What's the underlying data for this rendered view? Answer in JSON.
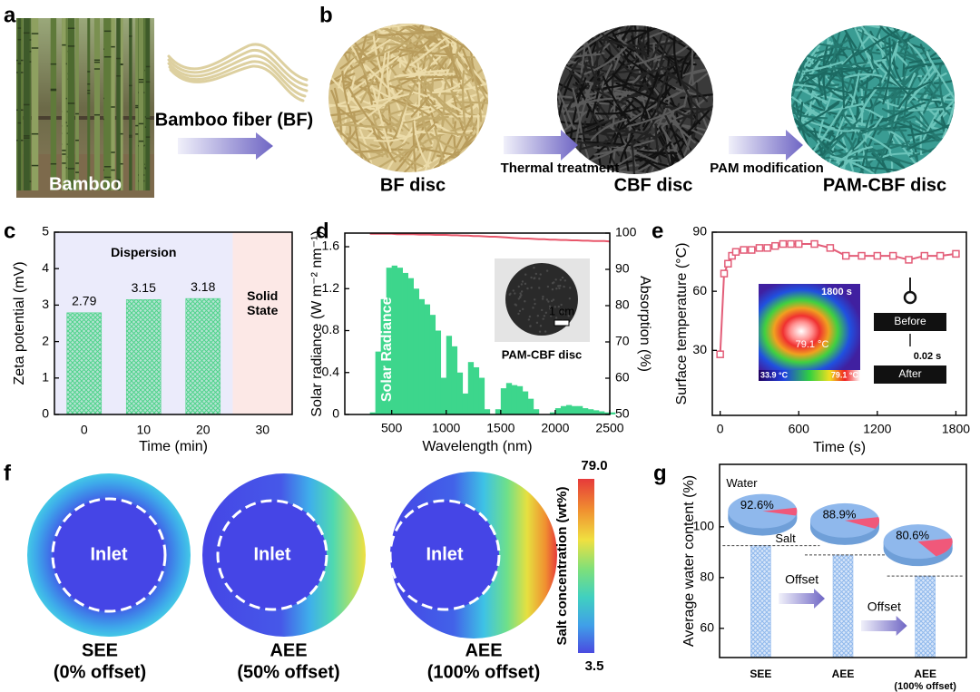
{
  "panels": {
    "a": {
      "label": "a",
      "photo": "Bamboo",
      "fiber": "Bamboo fiber (BF)"
    },
    "b": {
      "label": "b",
      "discs": [
        "BF disc",
        "CBF disc",
        "PAM-CBF disc"
      ],
      "steps": [
        "Thermal treatment",
        "PAM modification"
      ]
    },
    "f": {
      "label": "f",
      "inlets": [
        "Inlet",
        "Inlet",
        "Inlet"
      ],
      "cases": [
        {
          "name": "SEE",
          "offset": "(0% offset)"
        },
        {
          "name": "AEE",
          "offset": "(50% offset)"
        },
        {
          "name": "AEE",
          "offset": "(100% offset)"
        }
      ],
      "colorbar": {
        "label": "Salt concentration (wt%)",
        "max": "79.0",
        "min": "3.5"
      }
    }
  },
  "chart_data": [
    {
      "type": "bar",
      "label": "c",
      "categories": [
        "0",
        "10",
        "20",
        "30"
      ],
      "values": [
        2.79,
        3.15,
        3.18,
        null
      ],
      "color": "#4fd38a",
      "ylim": [
        0,
        5
      ],
      "yticks": [
        0,
        1,
        2,
        3,
        4,
        5
      ],
      "xlabel": "Time (min)",
      "ylabel": "Zeta potential (mV)",
      "regions": [
        {
          "label": "Dispersion",
          "color": "#ebebfb",
          "categories": [
            "0",
            "20"
          ]
        },
        {
          "label": "Solid State",
          "color": "#fce8e6",
          "categories": [
            "30",
            "30"
          ]
        }
      ]
    },
    {
      "type": "line",
      "label": "d",
      "x": [
        300,
        350,
        400,
        450,
        500,
        550,
        600,
        650,
        700,
        750,
        800,
        850,
        900,
        950,
        1000,
        1050,
        1100,
        1150,
        1200,
        1250,
        1300,
        1350,
        1400,
        1450,
        1500,
        1550,
        1600,
        1650,
        1700,
        1750,
        1800,
        1850,
        1900,
        1950,
        2000,
        2050,
        2100,
        2150,
        2200,
        2250,
        2300,
        2350,
        2400,
        2450,
        2500
      ],
      "xlim": [
        70,
        2500
      ],
      "xticks": [
        500,
        1000,
        1500,
        2000,
        2500
      ],
      "ylim": [
        0,
        1.73
      ],
      "yticks": [
        0,
        0.4,
        0.8,
        1.2,
        1.6
      ],
      "y2lim": [
        50,
        100
      ],
      "y2ticks": [
        50,
        60,
        70,
        80,
        90,
        100
      ],
      "xlabel": "Wavelength (nm)",
      "ylabel": "Solar radiance (W m⁻² nm⁻¹)",
      "y2label": "Absorption (%)",
      "series": [
        {
          "name": "Solar Radiance",
          "color": "#3dd68c",
          "fill": true,
          "values": [
            0.02,
            0.6,
            1.1,
            1.4,
            1.42,
            1.4,
            1.35,
            1.3,
            1.2,
            1.1,
            1.05,
            0.95,
            0.8,
            0.35,
            0.75,
            0.65,
            0.4,
            0.2,
            0.5,
            0.45,
            0.35,
            0.05,
            0.0,
            0.05,
            0.25,
            0.3,
            0.28,
            0.27,
            0.22,
            0.15,
            0.05,
            0.0,
            0.0,
            0.02,
            0.06,
            0.08,
            0.09,
            0.08,
            0.08,
            0.06,
            0.05,
            0.04,
            0.03,
            0.02,
            0.02
          ]
        },
        {
          "color": "#e8566a",
          "axis": "y2",
          "values": [
            99.8,
            99.8,
            99.8,
            99.8,
            99.8,
            99.7,
            99.7,
            99.7,
            99.7,
            99.6,
            99.6,
            99.6,
            99.5,
            99.5,
            99.5,
            99.4,
            99.4,
            99.3,
            99.3,
            99.2,
            99.2,
            99.1,
            99.0,
            99.0,
            98.9,
            98.8,
            98.7,
            98.6,
            98.5,
            98.5,
            98.4,
            98.3,
            98.3,
            98.2,
            98.2,
            98.1,
            98.1,
            98.0,
            98.0,
            97.9,
            97.9,
            97.8,
            97.8,
            97.8,
            97.7
          ]
        }
      ],
      "inset": {
        "scale": "1 cm",
        "caption": "PAM-CBF disc"
      }
    },
    {
      "type": "line",
      "label": "e",
      "x": [
        0,
        30,
        60,
        90,
        120,
        180,
        240,
        300,
        360,
        420,
        480,
        540,
        600,
        720,
        840,
        960,
        1080,
        1200,
        1320,
        1440,
        1560,
        1680,
        1800
      ],
      "xlim": [
        -60,
        1880
      ],
      "xticks": [
        0,
        600,
        1200,
        1800
      ],
      "ylim": [
        -3,
        90
      ],
      "yticks": [
        30,
        60,
        90
      ],
      "xlabel": "Time (s)",
      "ylabel": "Surface temperature (°C)",
      "series": [
        {
          "color": "#e35d78",
          "marker": "square",
          "values": [
            28,
            69,
            74,
            78,
            80,
            81,
            81,
            82,
            82,
            83,
            84,
            84,
            84,
            84,
            82,
            78,
            78,
            78,
            78,
            76,
            78,
            78,
            79
          ]
        }
      ],
      "inset": {
        "time": "1800 s",
        "peak": "79.1 °C",
        "scale_min": "33.9 °C",
        "scale_max": "79.1 °C",
        "before": "Before",
        "interval": "0.02 s",
        "after": "After"
      }
    },
    {
      "type": "bar",
      "label": "g",
      "categories": [
        "SEE",
        "AEE",
        "AEE"
      ],
      "offset_note": "(100% offset)",
      "values": [
        92.6,
        88.9,
        80.6
      ],
      "value_labels": [
        "92.6%",
        "88.9%",
        "80.6%"
      ],
      "color": "#8fb8ec",
      "salt_color": "#f0587a",
      "ylim": [
        48.5,
        124.6
      ],
      "yticks": [
        60,
        80,
        100
      ],
      "ylabel": "Average water content (%)",
      "water_label": "Water",
      "salt_label": "Salt",
      "offset_labels": [
        "Offset",
        "Offset"
      ]
    }
  ]
}
